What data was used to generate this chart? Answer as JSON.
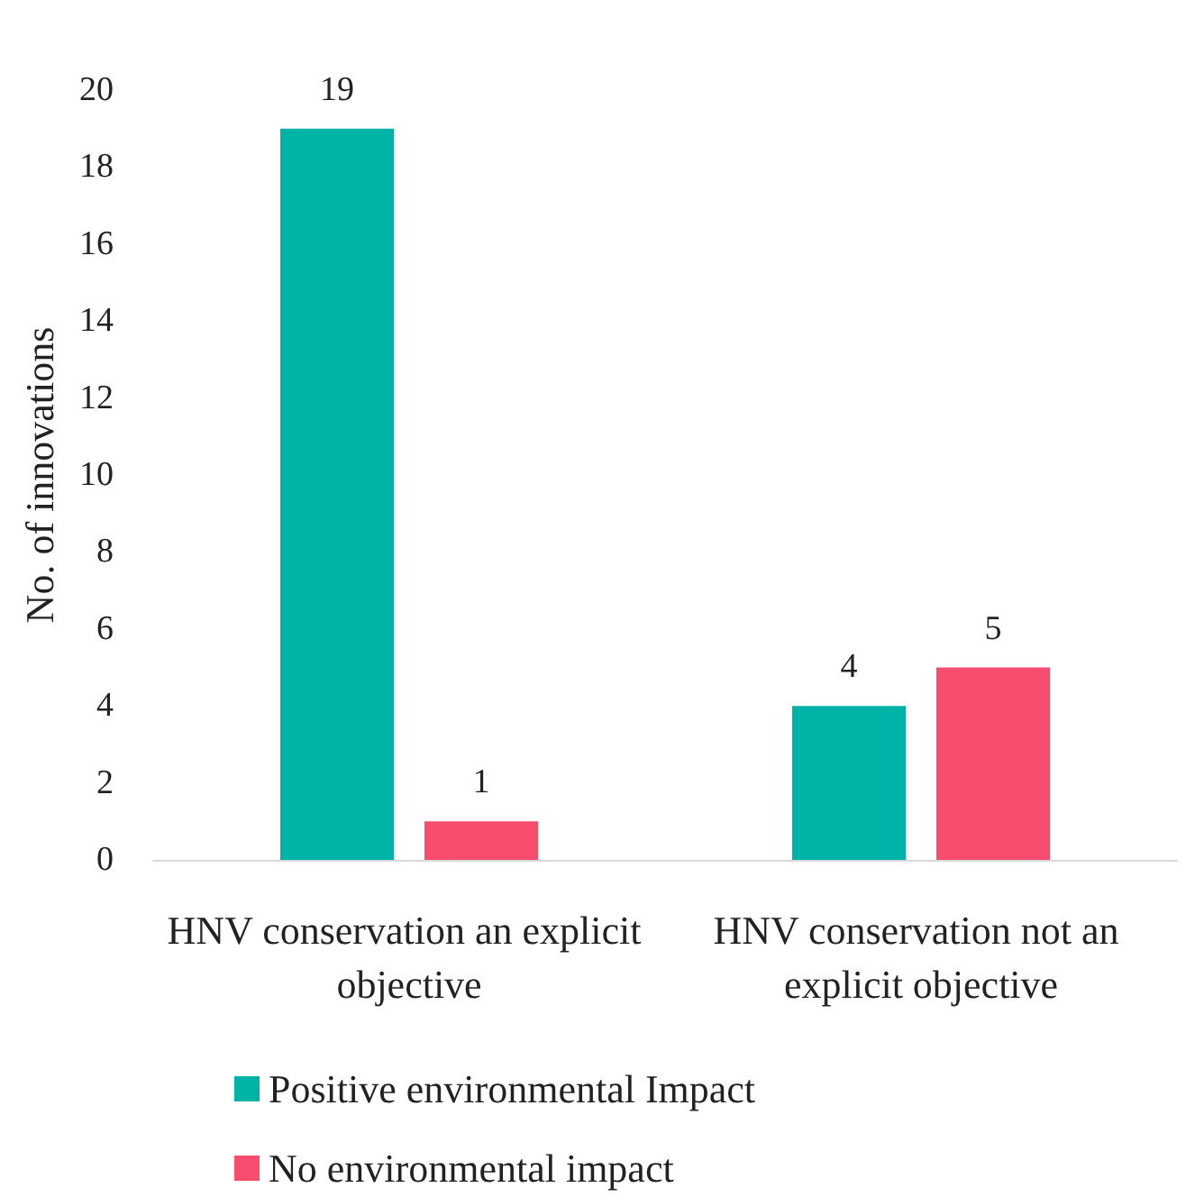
{
  "chart_data": {
    "type": "bar",
    "categories": [
      "HNV conservation an explicit objective",
      "HNV conservation not an explicit objective"
    ],
    "series": [
      {
        "name": "Positive environmental Impact",
        "color": "#00b3a7",
        "values": [
          19,
          4
        ]
      },
      {
        "name": "No environmental impact",
        "color": "#f64c6e",
        "values": [
          1,
          5
        ]
      }
    ],
    "ylabel": "No. of innovations",
    "ylim": [
      0,
      20
    ],
    "yticks": [
      0,
      2,
      4,
      6,
      8,
      10,
      12,
      14,
      16,
      18,
      20
    ],
    "grid": false,
    "legend": "bottom",
    "data_labels": true
  }
}
